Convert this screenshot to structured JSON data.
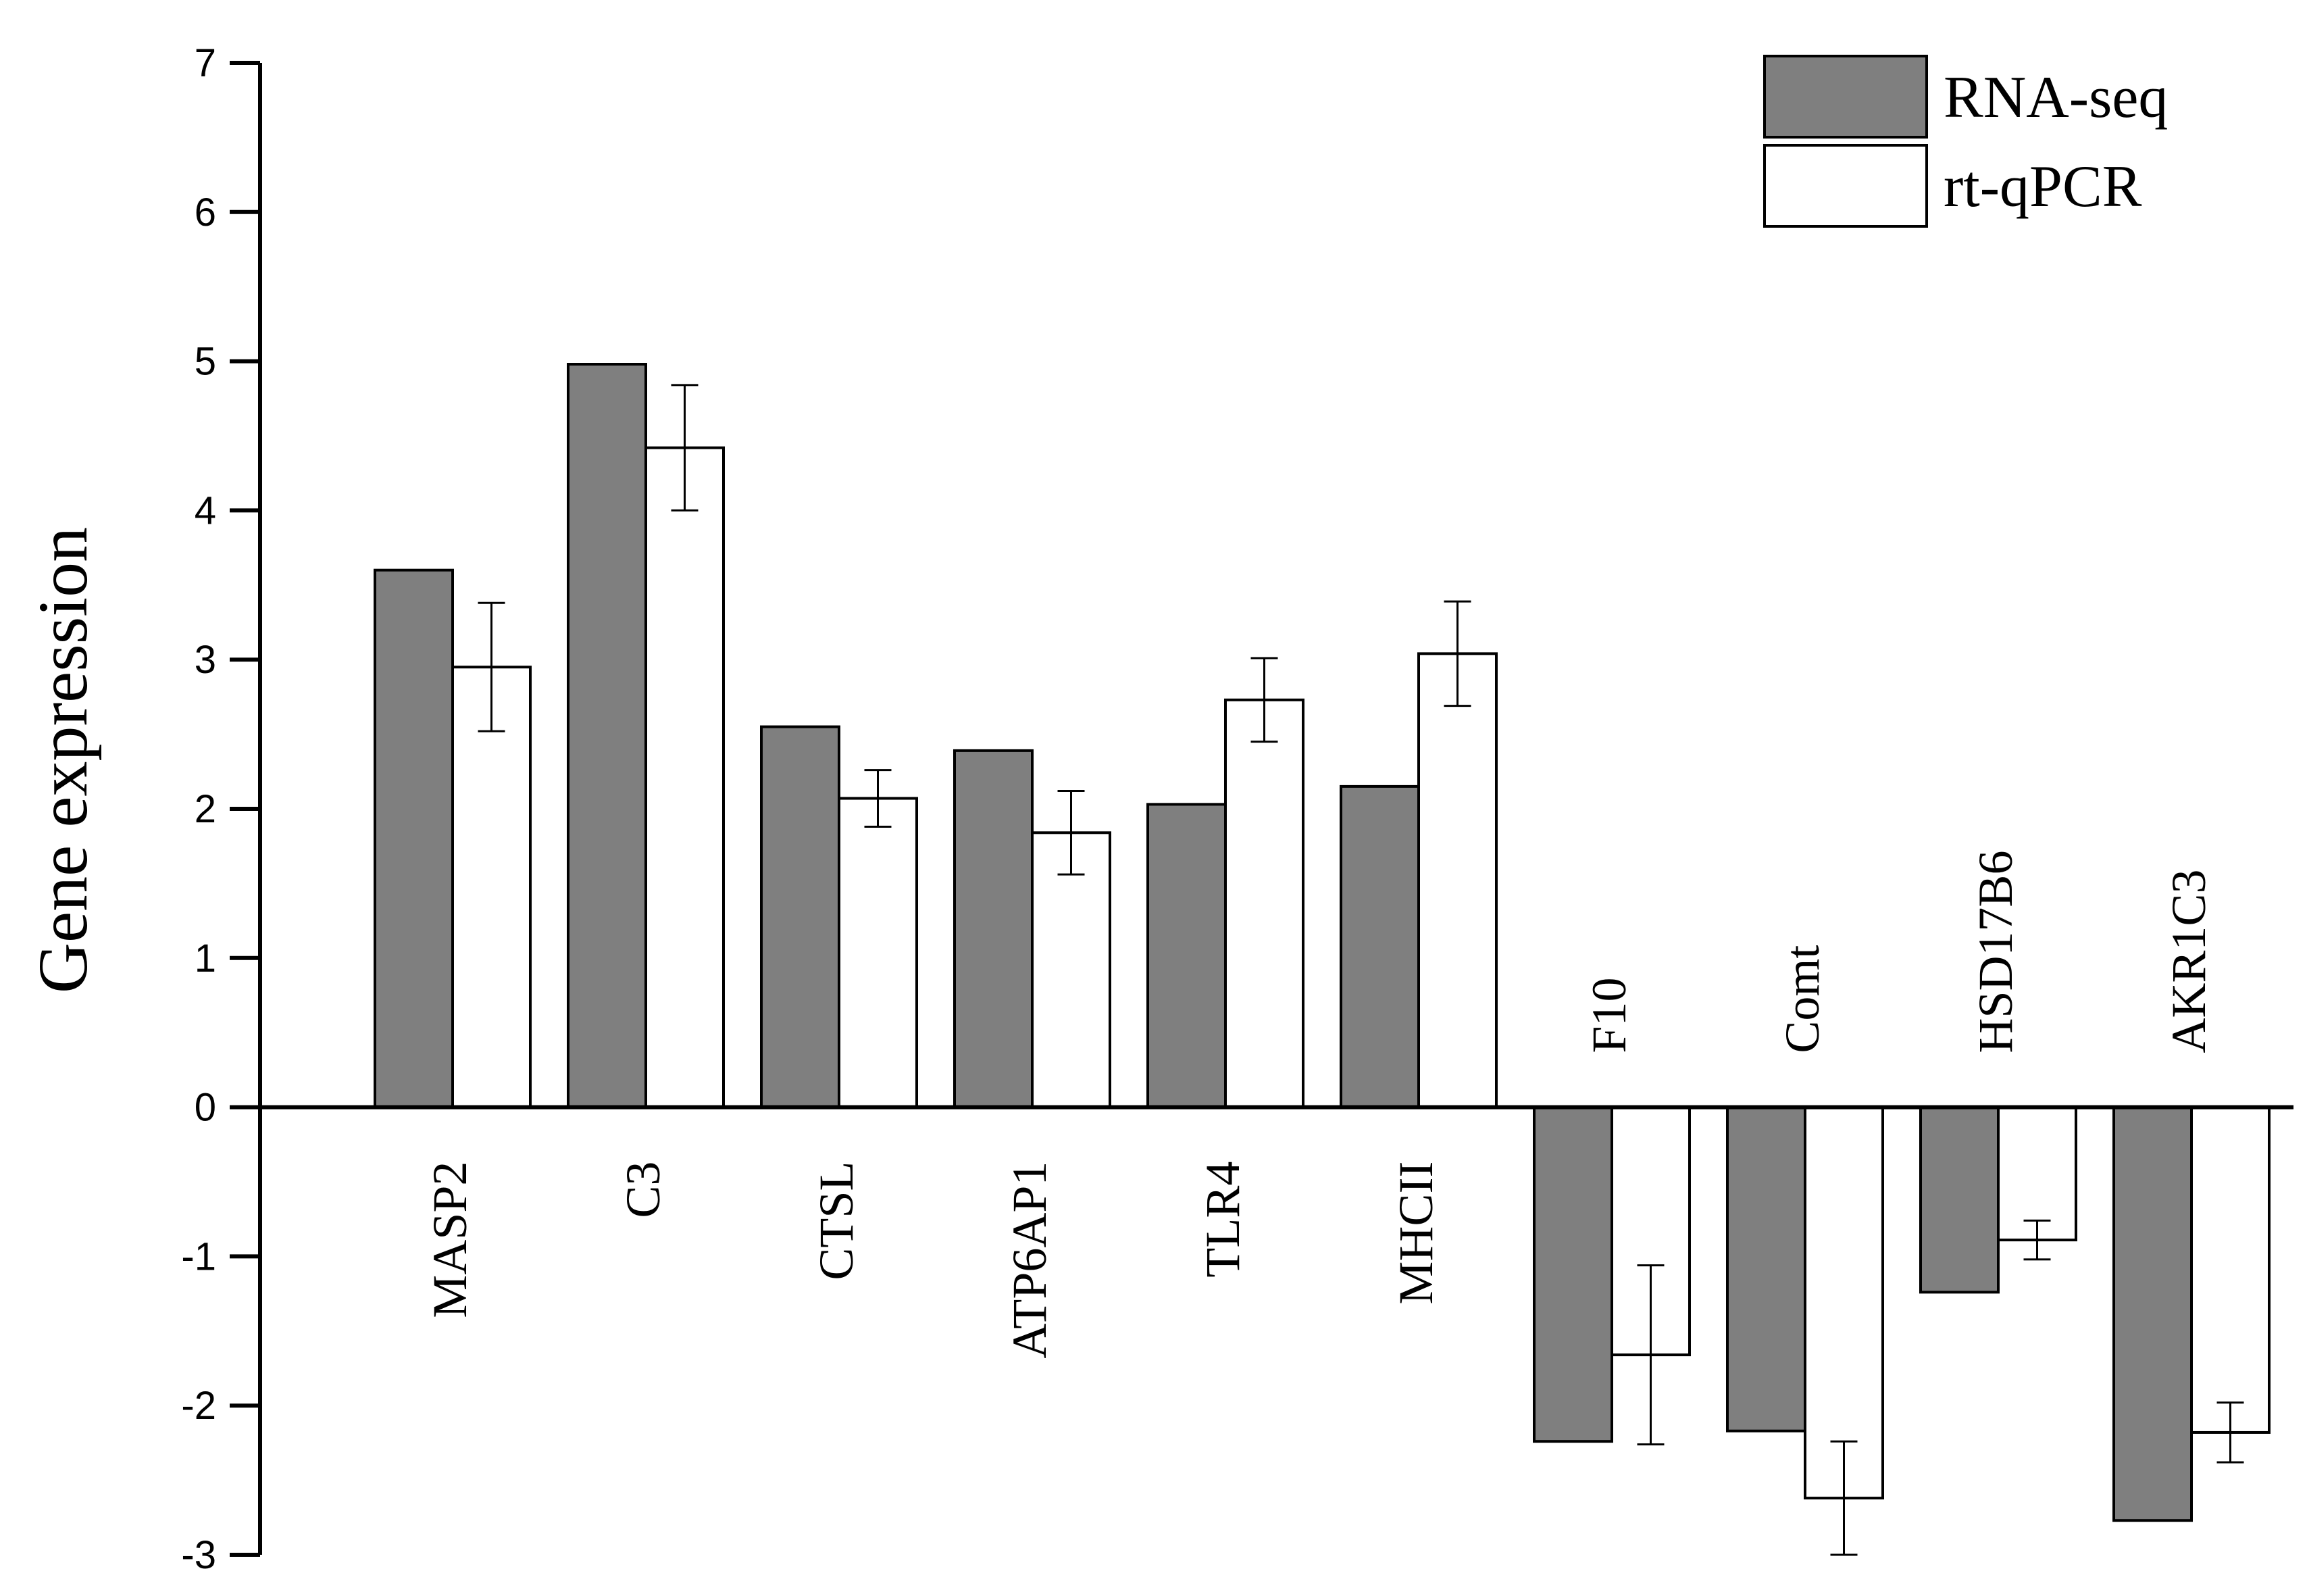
{
  "chart_data": {
    "type": "bar",
    "title": "",
    "xlabel": "",
    "ylabel": "Gene expression",
    "ylim": [
      -3,
      7
    ],
    "yticks": [
      -3,
      -2,
      -1,
      0,
      1,
      2,
      3,
      4,
      5,
      6,
      7
    ],
    "grid": false,
    "legend_position": "top-right",
    "categories": [
      "MASP2",
      "C3",
      "CTSL",
      "ATP6AP1",
      "TLR4",
      "MHCII",
      "F10",
      "Comt",
      "HSD17B6",
      "AKR1C3"
    ],
    "series": [
      {
        "name": "RNA-seq",
        "color": "#7f7f7f",
        "values": [
          3.6,
          4.98,
          2.55,
          2.39,
          2.03,
          2.15,
          -2.24,
          -2.17,
          -1.24,
          -2.77
        ]
      },
      {
        "name": "rt-qPCR",
        "color": "#ffffff",
        "values": [
          2.95,
          4.42,
          2.07,
          1.84,
          2.73,
          3.04,
          -1.66,
          -2.62,
          -0.89,
          -2.18
        ],
        "errors": [
          0.43,
          0.42,
          0.19,
          0.28,
          0.28,
          0.35,
          0.6,
          0.38,
          0.13,
          0.2
        ]
      }
    ]
  }
}
